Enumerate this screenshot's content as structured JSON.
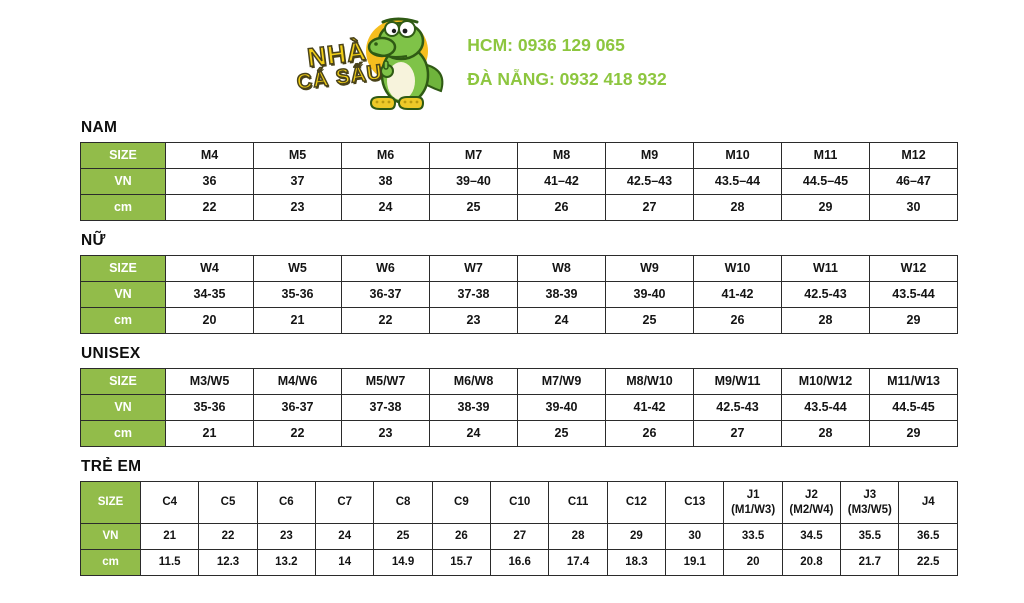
{
  "header": {
    "logo": {
      "text_line1": "NHÀ",
      "text_line2": "CÁ SẤU",
      "mascot": "crocodile-mascot"
    },
    "contact": {
      "line1": "HCM: 0936 129 065",
      "line2": "ĐÀ NẴNG: 0932 418 932"
    }
  },
  "colors": {
    "contact_green": "#8DC63F",
    "cell_green": "#92BC4A",
    "table_border": "#2b2b2b",
    "logo_yellow": "#F2CF17",
    "logo_circle_yellow": "#F6BE1E",
    "croc_green": "#7FC348"
  },
  "tables": [
    {
      "title": "NAM",
      "kids": false,
      "rows": [
        {
          "label": "SIZE",
          "values": [
            "M4",
            "M5",
            "M6",
            "M7",
            "M8",
            "M9",
            "M10",
            "M11",
            "M12"
          ]
        },
        {
          "label": "VN",
          "values": [
            "36",
            "37",
            "38",
            "39–40",
            "41–42",
            "42.5–43",
            "43.5–44",
            "44.5–45",
            "46–47"
          ]
        },
        {
          "label": "cm",
          "values": [
            "22",
            "23",
            "24",
            "25",
            "26",
            "27",
            "28",
            "29",
            "30"
          ]
        }
      ]
    },
    {
      "title": "NỮ",
      "kids": false,
      "rows": [
        {
          "label": "SIZE",
          "values": [
            "W4",
            "W5",
            "W6",
            "W7",
            "W8",
            "W9",
            "W10",
            "W11",
            "W12"
          ]
        },
        {
          "label": "VN",
          "values": [
            "34-35",
            "35-36",
            "36-37",
            "37-38",
            "38-39",
            "39-40",
            "41-42",
            "42.5-43",
            "43.5-44"
          ]
        },
        {
          "label": "cm",
          "values": [
            "20",
            "21",
            "22",
            "23",
            "24",
            "25",
            "26",
            "28",
            "29"
          ]
        }
      ]
    },
    {
      "title": "UNISEX",
      "kids": false,
      "rows": [
        {
          "label": "SIZE",
          "values": [
            "M3/W5",
            "M4/W6",
            "M5/W7",
            "M6/W8",
            "M7/W9",
            "M8/W10",
            "M9/W11",
            "M10/W12",
            "M11/W13"
          ]
        },
        {
          "label": "VN",
          "values": [
            "35-36",
            "36-37",
            "37-38",
            "38-39",
            "39-40",
            "41-42",
            "42.5-43",
            "43.5-44",
            "44.5-45"
          ]
        },
        {
          "label": "cm",
          "values": [
            "21",
            "22",
            "23",
            "24",
            "25",
            "26",
            "27",
            "28",
            "29"
          ]
        }
      ]
    },
    {
      "title": "TRẺ EM",
      "kids": true,
      "rows": [
        {
          "label": "SIZE",
          "values": [
            "C4",
            "C5",
            "C6",
            "C7",
            "C8",
            "C9",
            "C10",
            "C11",
            "C12",
            "C13",
            "J1\n(M1/W3)",
            "J2\n(M2/W4)",
            "J3\n(M3/W5)",
            "J4"
          ]
        },
        {
          "label": "VN",
          "values": [
            "21",
            "22",
            "23",
            "24",
            "25",
            "26",
            "27",
            "28",
            "29",
            "30",
            "33.5",
            "34.5",
            "35.5",
            "36.5"
          ]
        },
        {
          "label": "cm",
          "values": [
            "11.5",
            "12.3",
            "13.2",
            "14",
            "14.9",
            "15.7",
            "16.6",
            "17.4",
            "18.3",
            "19.1",
            "20",
            "20.8",
            "21.7",
            "22.5"
          ]
        }
      ]
    }
  ]
}
